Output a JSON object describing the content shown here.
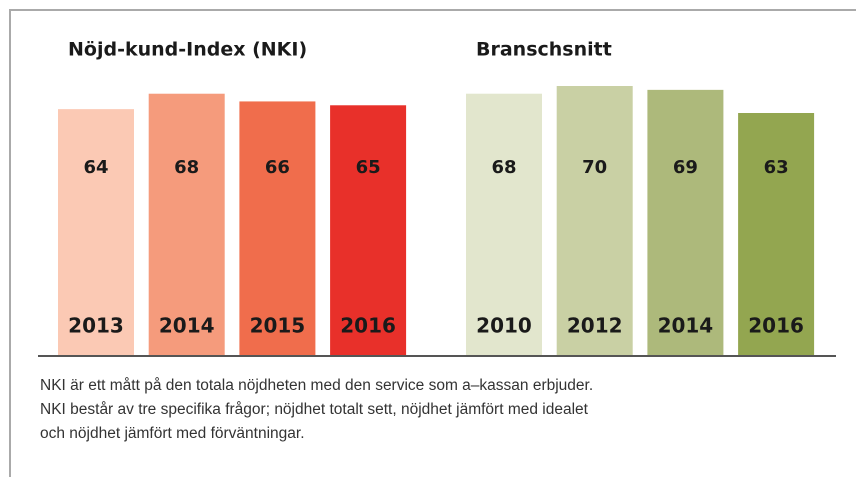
{
  "chart_data": [
    {
      "type": "bar",
      "title": "Nöjd-kund-Index (NKI)",
      "categories": [
        "2013",
        "2014",
        "2015",
        "2016"
      ],
      "values": [
        64,
        68,
        66,
        65
      ],
      "colors": [
        "#fbc9b4",
        "#f59b7c",
        "#f06d4c",
        "#e8302a"
      ],
      "ylim": [
        0,
        70
      ]
    },
    {
      "type": "bar",
      "title": "Branschsnitt",
      "categories": [
        "2010",
        "2012",
        "2014",
        "2016"
      ],
      "values": [
        68,
        70,
        69,
        63
      ],
      "colors": [
        "#e2e6cd",
        "#c9d0a4",
        "#adb97b",
        "#93a650"
      ],
      "ylim": [
        0,
        70
      ]
    }
  ],
  "caption": [
    "NKI är ett mått på den totala nöjdheten med den service som a–kassan erbjuder.",
    "NKI består av tre specifika frågor; nöjdhet totalt sett, nöjdhet jämfört med idealet",
    "och nöjdhet jämfört med förväntningar."
  ]
}
